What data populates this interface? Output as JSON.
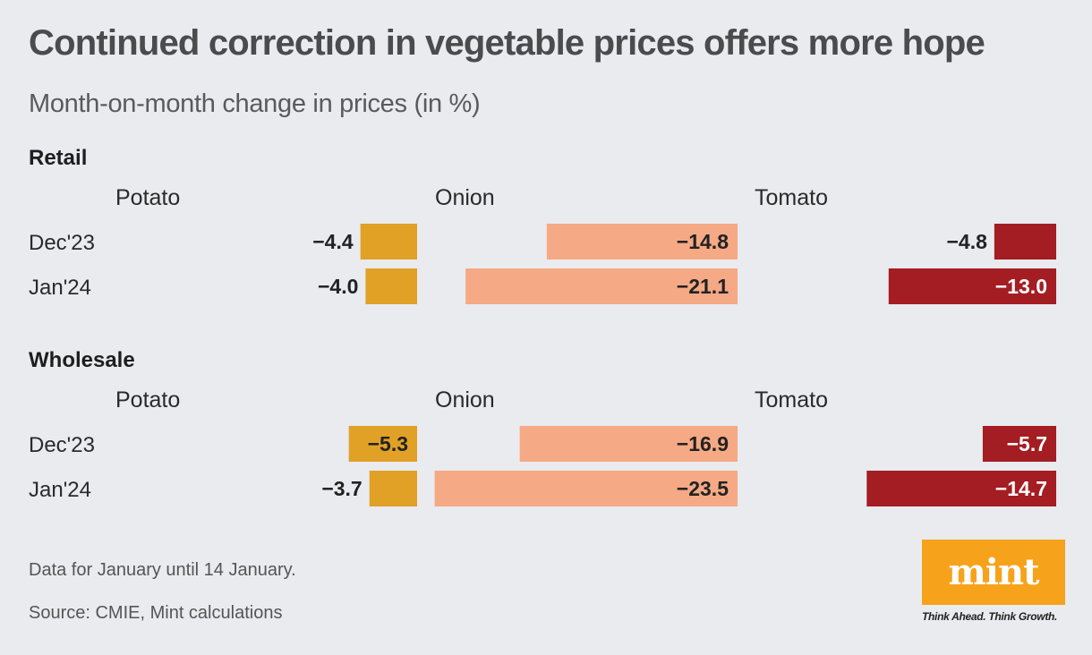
{
  "title": "Continued correction in vegetable prices offers more hope",
  "subtitle": "Month-on-month change in prices (in %)",
  "notes": {
    "data_note": "Data for January until 14 January.",
    "source": "Source: CMIE, Mint calculations"
  },
  "logo": {
    "text": "mint",
    "tagline": "Think Ahead. Think Growth.",
    "color": "#f7a21b"
  },
  "colors": {
    "Potato": "#e0a126",
    "Onion": "#f5a985",
    "Tomato": "#a31d22",
    "background": "#e9ebef"
  },
  "chart_data": {
    "type": "bar",
    "orientation": "horizontal",
    "unit": "%",
    "crops": [
      "Potato",
      "Onion",
      "Tomato"
    ],
    "months": [
      "Dec'23",
      "Jan'24"
    ],
    "panels": [
      {
        "name": "Retail",
        "series": [
          {
            "name": "Potato",
            "values": [
              -4.4,
              -4.0
            ],
            "labels": [
              "−4.4",
              "−4.0"
            ]
          },
          {
            "name": "Onion",
            "values": [
              -14.8,
              -21.1
            ],
            "labels": [
              "−14.8",
              "−21.1"
            ]
          },
          {
            "name": "Tomato",
            "values": [
              -4.8,
              -13.0
            ],
            "labels": [
              "−4.8",
              "−13.0"
            ]
          }
        ]
      },
      {
        "name": "Wholesale",
        "series": [
          {
            "name": "Potato",
            "values": [
              -5.3,
              -3.7
            ],
            "labels": [
              "−5.3",
              "−3.7"
            ]
          },
          {
            "name": "Onion",
            "values": [
              -16.9,
              -23.5
            ],
            "labels": [
              "−16.9",
              "−23.5"
            ]
          },
          {
            "name": "Tomato",
            "values": [
              -5.7,
              -14.7
            ],
            "labels": [
              "−5.7",
              "−14.7"
            ]
          }
        ]
      }
    ]
  }
}
